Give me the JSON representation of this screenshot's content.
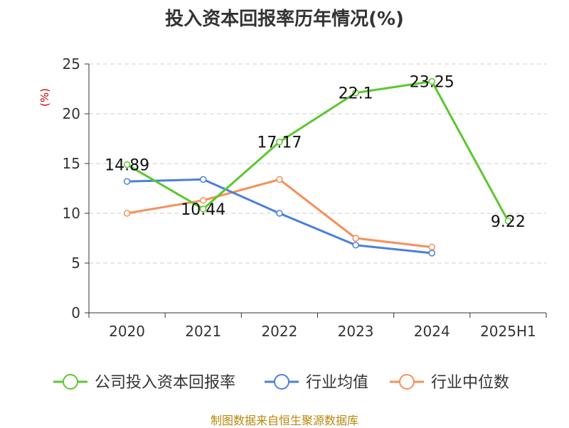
{
  "chart_data": {
    "type": "line",
    "title": "投入资本回报率历年情况(%)",
    "ylabel": "(%)",
    "xlabel": "",
    "categories": [
      "2020",
      "2021",
      "2022",
      "2023",
      "2024",
      "2025H1"
    ],
    "ylim": [
      0,
      25
    ],
    "yticks": [
      0,
      5,
      10,
      15,
      20,
      25
    ],
    "grid": true,
    "legend_position": "bottom",
    "series": [
      {
        "name": "公司投入资本回报率",
        "color": "#5cc72e",
        "values": [
          14.89,
          10.44,
          17.17,
          22.1,
          23.25,
          9.22
        ],
        "labels": [
          "14.89",
          "10.44",
          "17.17",
          "22.1",
          "23.25",
          "9.22"
        ]
      },
      {
        "name": "行业均值",
        "color": "#4a7fe0",
        "values": [
          13.2,
          13.4,
          10.0,
          6.8,
          6.0,
          null
        ],
        "labels": []
      },
      {
        "name": "行业中位数",
        "color": "#f5905a",
        "values": [
          10.0,
          11.3,
          13.4,
          7.5,
          6.6,
          null
        ],
        "labels": []
      }
    ]
  },
  "footer": "制图数据来自恒生聚源数据库"
}
